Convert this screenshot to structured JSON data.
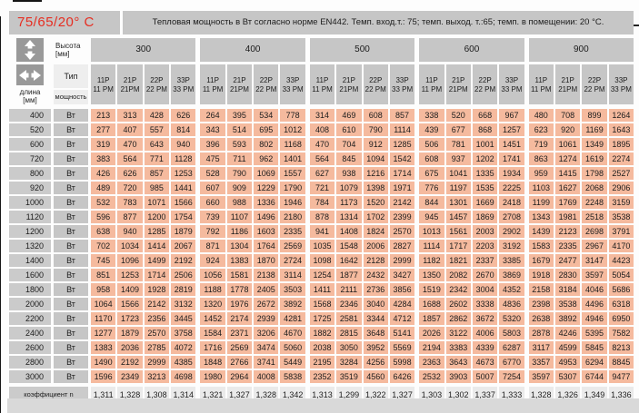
{
  "page": {
    "temp_label": "75/65/20° C",
    "title": "Тепловая мощность в Вт согласно норме EN442. Темп. вход.т.: 75; темп. выход. т.:65; темп. в помещении: 20 °С."
  },
  "legend": {
    "height_label": "Высота",
    "height_unit": "[мм]",
    "length_label": "длина",
    "length_unit": "[мм]",
    "type_label": "Тип",
    "power_label": "мощность",
    "watt_label": "Вт",
    "coefficient_label": "коэффициент n"
  },
  "colors": {
    "accent_red": "#e62e22",
    "header_gray": "#c6c6c6",
    "cell_salmon": "#f5ba9e",
    "coefficient_gray": "#eaeaea",
    "footer_gray": "#d9d9d9",
    "icon_gray": "#999999"
  },
  "chart_data": {
    "type": "table",
    "title": "Тепловая мощность в Вт согласно норме EN442",
    "heights_mm": [
      "300",
      "400",
      "500",
      "600",
      "900"
    ],
    "types": [
      {
        "line1": "11P",
        "line2": "11 PM"
      },
      {
        "line1": "21P",
        "line2": "21PM"
      },
      {
        "line1": "22P",
        "line2": "22 PM"
      },
      {
        "line1": "33P",
        "line2": "33 PM"
      }
    ],
    "lengths_mm": [
      "400",
      "520",
      "600",
      "720",
      "800",
      "920",
      "1000",
      "1120",
      "1200",
      "1320",
      "1400",
      "1600",
      "1800",
      "2000",
      "2200",
      "2400",
      "2600",
      "2800",
      "3000"
    ],
    "rows": [
      [
        213,
        313,
        428,
        626,
        264,
        395,
        534,
        778,
        314,
        469,
        608,
        857,
        338,
        520,
        668,
        967,
        480,
        708,
        899,
        1264
      ],
      [
        277,
        407,
        557,
        814,
        343,
        514,
        695,
        1012,
        408,
        610,
        790,
        1114,
        439,
        677,
        868,
        1257,
        623,
        920,
        1169,
        1643
      ],
      [
        319,
        470,
        643,
        940,
        396,
        593,
        802,
        1168,
        470,
        704,
        912,
        1285,
        506,
        781,
        1001,
        1451,
        719,
        1061,
        1349,
        1895
      ],
      [
        383,
        564,
        771,
        1128,
        475,
        711,
        962,
        1401,
        564,
        845,
        1094,
        1542,
        608,
        937,
        1202,
        1741,
        863,
        1274,
        1619,
        2274
      ],
      [
        426,
        626,
        857,
        1253,
        528,
        790,
        1069,
        1557,
        627,
        938,
        1216,
        1714,
        675,
        1041,
        1335,
        1934,
        959,
        1415,
        1798,
        2527
      ],
      [
        489,
        720,
        985,
        1441,
        607,
        909,
        1229,
        1790,
        721,
        1079,
        1398,
        1971,
        776,
        1197,
        1535,
        2225,
        1103,
        1627,
        2068,
        2906
      ],
      [
        532,
        783,
        1071,
        1566,
        660,
        988,
        1336,
        1946,
        784,
        1173,
        1520,
        2142,
        844,
        1301,
        1669,
        2418,
        1199,
        1769,
        2248,
        3159
      ],
      [
        596,
        877,
        1200,
        1754,
        739,
        1107,
        1496,
        2180,
        878,
        1314,
        1702,
        2399,
        945,
        1457,
        1869,
        2708,
        1343,
        1981,
        2518,
        3538
      ],
      [
        638,
        940,
        1285,
        1879,
        792,
        1186,
        1603,
        2335,
        941,
        1408,
        1824,
        2570,
        1013,
        1561,
        2003,
        2902,
        1439,
        2123,
        2698,
        3791
      ],
      [
        702,
        1034,
        1414,
        2067,
        871,
        1304,
        1764,
        2569,
        1035,
        1548,
        2006,
        2827,
        1114,
        1717,
        2203,
        3192,
        1583,
        2335,
        2967,
        4170
      ],
      [
        745,
        1096,
        1499,
        2192,
        924,
        1383,
        1870,
        2724,
        1098,
        1642,
        2128,
        2999,
        1182,
        1821,
        2337,
        3385,
        1679,
        2477,
        3147,
        4423
      ],
      [
        851,
        1253,
        1714,
        2506,
        1056,
        1581,
        2138,
        3114,
        1254,
        1877,
        2432,
        3427,
        1350,
        2082,
        2670,
        3869,
        1918,
        2830,
        3597,
        5054
      ],
      [
        958,
        1409,
        1928,
        2819,
        1188,
        1778,
        2405,
        3503,
        1411,
        2111,
        2736,
        3856,
        1519,
        2342,
        3004,
        4352,
        2158,
        3184,
        4046,
        5686
      ],
      [
        1064,
        1566,
        2142,
        3132,
        1320,
        1976,
        2672,
        3892,
        1568,
        2346,
        3040,
        4284,
        1688,
        2602,
        3338,
        4836,
        2398,
        3538,
        4496,
        6318
      ],
      [
        1170,
        1723,
        2356,
        3445,
        1452,
        2174,
        2939,
        4281,
        1725,
        2581,
        3344,
        4712,
        1857,
        2862,
        3672,
        5320,
        2638,
        3892,
        4946,
        6950
      ],
      [
        1277,
        1879,
        2570,
        3758,
        1584,
        2371,
        3206,
        4670,
        1882,
        2815,
        3648,
        5141,
        2026,
        3122,
        4006,
        5803,
        2878,
        4246,
        5395,
        7582
      ],
      [
        1383,
        2036,
        2785,
        4072,
        1716,
        2569,
        3474,
        5060,
        2038,
        3050,
        3952,
        5569,
        2194,
        3383,
        4339,
        6287,
        3117,
        4599,
        5845,
        8213
      ],
      [
        1490,
        2192,
        2999,
        4385,
        1848,
        2766,
        3741,
        5449,
        2195,
        3284,
        4256,
        5998,
        2363,
        3643,
        4673,
        6770,
        3357,
        4953,
        6294,
        8845
      ],
      [
        1596,
        2349,
        3213,
        4698,
        1980,
        2964,
        4008,
        5838,
        2352,
        3519,
        4560,
        6426,
        2532,
        3903,
        5007,
        7254,
        3597,
        5307,
        6744,
        9477
      ]
    ],
    "coefficients": [
      "1,311",
      "1,328",
      "1,308",
      "1,314",
      "1,321",
      "1,327",
      "1,328",
      "1,342",
      "1,313",
      "1,299",
      "1,322",
      "1,327",
      "1,303",
      "1,302",
      "1,337",
      "1,333",
      "1,328",
      "1,326",
      "1,349",
      "1,336"
    ]
  }
}
